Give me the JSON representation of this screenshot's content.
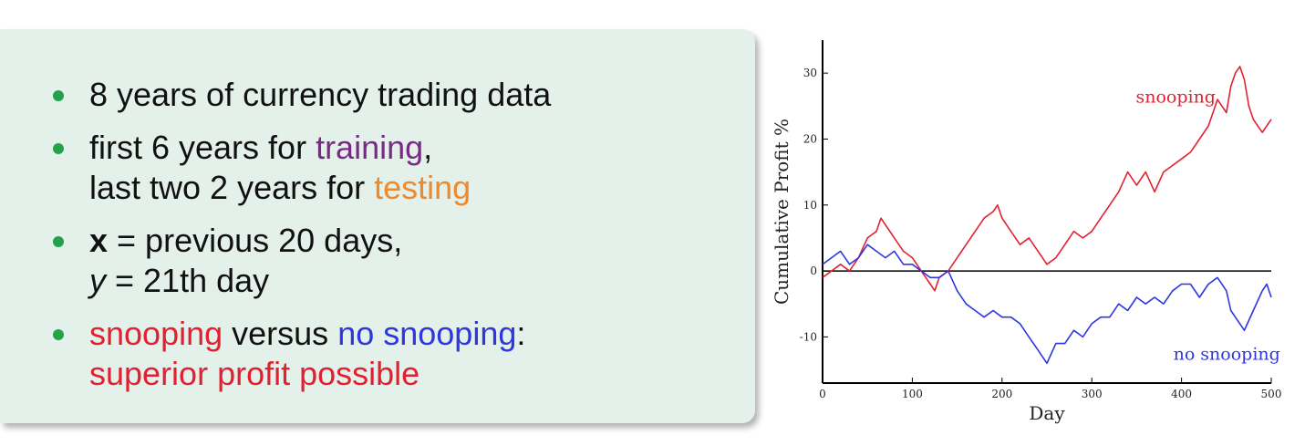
{
  "slide": {
    "bullet1": "8 years of currency trading data",
    "bullet2_a": "first 6 years for ",
    "bullet2_b": "training",
    "bullet2_c": ",",
    "bullet2_d": "last two 2 years for ",
    "bullet2_e": "testing",
    "bullet3_a": "x",
    "bullet3_b": " = previous 20 days,",
    "bullet3_c": "y",
    "bullet3_d": " = 21th day",
    "bullet4_a": "snooping",
    "bullet4_b": " versus ",
    "bullet4_c": "no snooping",
    "bullet4_d": ":",
    "bullet4_e": "superior profit possible"
  },
  "colors": {
    "panel_bg": "#e4f1ea",
    "bullet_dot": "#22a24a",
    "training": "#7a2a86",
    "testing": "#ef8a2c",
    "snooping": "#e32030",
    "no_snooping": "#2e36e0"
  },
  "chart_data": {
    "type": "line",
    "xlabel": "Day",
    "ylabel": "Cumulative Profit %",
    "xlim": [
      0,
      500
    ],
    "ylim": [
      -17,
      35
    ],
    "xticks": [
      0,
      100,
      200,
      300,
      400,
      500
    ],
    "yticks": [
      -10,
      0,
      10,
      20,
      30
    ],
    "zero_line": true,
    "grid": false,
    "series": [
      {
        "name": "snooping",
        "color": "#e32030",
        "x": [
          0,
          10,
          20,
          30,
          40,
          50,
          60,
          65,
          70,
          80,
          90,
          100,
          110,
          120,
          125,
          130,
          140,
          150,
          160,
          170,
          180,
          190,
          195,
          200,
          210,
          220,
          230,
          240,
          250,
          260,
          270,
          280,
          290,
          300,
          310,
          320,
          330,
          340,
          350,
          360,
          370,
          380,
          390,
          400,
          410,
          420,
          430,
          440,
          450,
          455,
          460,
          465,
          470,
          475,
          480,
          485,
          490,
          495,
          500
        ],
        "values": [
          -1,
          0,
          1,
          0,
          2,
          5,
          6,
          8,
          7,
          5,
          3,
          2,
          0,
          -2,
          -3,
          -1,
          0,
          2,
          4,
          6,
          8,
          9,
          10,
          8,
          6,
          4,
          5,
          3,
          1,
          2,
          4,
          6,
          5,
          6,
          8,
          10,
          12,
          15,
          13,
          15,
          12,
          15,
          16,
          17,
          18,
          20,
          22,
          26,
          24,
          28,
          30,
          31,
          29,
          25,
          23,
          22,
          21,
          22,
          23
        ]
      },
      {
        "name": "no snooping",
        "color": "#2e36e0",
        "x": [
          0,
          10,
          20,
          30,
          40,
          50,
          60,
          70,
          80,
          90,
          100,
          110,
          120,
          130,
          140,
          150,
          160,
          170,
          180,
          190,
          200,
          210,
          220,
          230,
          240,
          245,
          250,
          260,
          270,
          280,
          290,
          300,
          310,
          320,
          330,
          340,
          350,
          360,
          370,
          380,
          390,
          400,
          410,
          420,
          430,
          440,
          450,
          455,
          460,
          470,
          480,
          490,
          495,
          500
        ],
        "values": [
          1,
          2,
          3,
          1,
          2,
          4,
          3,
          2,
          3,
          1,
          1,
          0,
          -1,
          -1,
          0,
          -3,
          -5,
          -6,
          -7,
          -6,
          -7,
          -7,
          -8,
          -10,
          -12,
          -13,
          -14,
          -11,
          -11,
          -9,
          -10,
          -8,
          -7,
          -7,
          -5,
          -6,
          -4,
          -5,
          -4,
          -5,
          -3,
          -2,
          -2,
          -4,
          -2,
          -1,
          -3,
          -6,
          -7,
          -9,
          -6,
          -3,
          -2,
          -4
        ]
      }
    ],
    "annotations": [
      {
        "text": "snooping",
        "color": "#e32030"
      },
      {
        "text": "no snooping",
        "color": "#2e36e0"
      }
    ]
  }
}
